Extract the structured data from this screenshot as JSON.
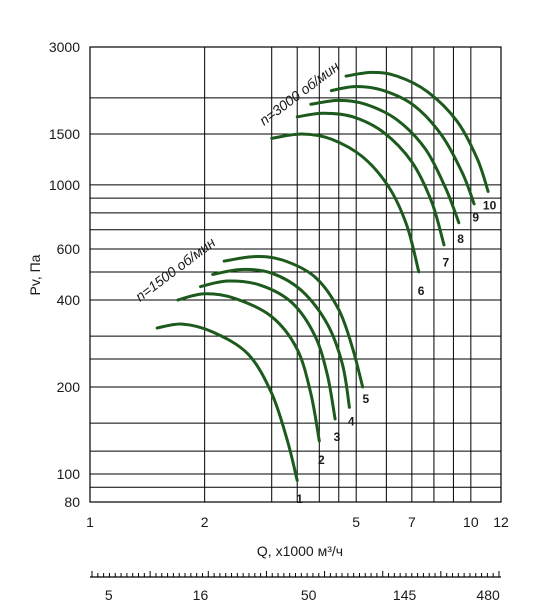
{
  "chart_data": {
    "type": "line",
    "title": "",
    "xlabel": "Q, x1000 м³/ч",
    "ylabel": "Pv, Па",
    "x_scale": "log",
    "y_scale": "log",
    "xlim": [
      1,
      12
    ],
    "ylim": [
      80,
      3000
    ],
    "grid": true,
    "line_color": "#1d5a1d",
    "x_ticks": [
      1,
      2,
      5,
      7,
      10,
      12
    ],
    "x_tick_labels": [
      "1",
      "2",
      "5",
      "7",
      "10",
      "12"
    ],
    "x_gridlines": [
      1,
      2,
      3,
      3.5,
      4,
      4.5,
      5,
      6,
      7,
      8,
      9,
      10,
      12
    ],
    "y_ticks": [
      80,
      100,
      200,
      400,
      600,
      1000,
      1500,
      3000
    ],
    "y_tick_labels": [
      "80",
      "100",
      "200",
      "400",
      "600",
      "1000",
      "1500",
      "3000"
    ],
    "y_gridlines": [
      80,
      90,
      100,
      120,
      150,
      200,
      250,
      300,
      400,
      500,
      600,
      700,
      800,
      900,
      1000,
      1500,
      2000,
      3000
    ],
    "secondary_axis": {
      "tick_labels": [
        "5",
        "16",
        "50",
        "145",
        "480"
      ],
      "tick_positions_q": [
        1.12,
        1.95,
        3.75,
        6.7,
        11.1
      ]
    },
    "speed_labels": [
      {
        "text": "n=1500 об/мин",
        "curves": [
          1,
          2,
          3,
          4,
          5
        ]
      },
      {
        "text": "n=3000 об/мин",
        "curves": [
          6,
          7,
          8,
          9,
          10
        ]
      }
    ],
    "series": [
      {
        "name": "1",
        "points": [
          [
            1.5,
            320
          ],
          [
            1.75,
            330
          ],
          [
            2.1,
            310
          ],
          [
            2.6,
            260
          ],
          [
            3.0,
            190
          ],
          [
            3.3,
            130
          ],
          [
            3.5,
            95
          ]
        ]
      },
      {
        "name": "2",
        "points": [
          [
            1.7,
            400
          ],
          [
            2.0,
            420
          ],
          [
            2.4,
            405
          ],
          [
            3.0,
            350
          ],
          [
            3.5,
            270
          ],
          [
            3.8,
            190
          ],
          [
            4.0,
            130
          ]
        ]
      },
      {
        "name": "3",
        "points": [
          [
            1.95,
            445
          ],
          [
            2.3,
            465
          ],
          [
            2.8,
            450
          ],
          [
            3.4,
            390
          ],
          [
            3.9,
            300
          ],
          [
            4.2,
            220
          ],
          [
            4.4,
            155
          ]
        ]
      },
      {
        "name": "4",
        "points": [
          [
            2.1,
            490
          ],
          [
            2.5,
            510
          ],
          [
            3.0,
            495
          ],
          [
            3.6,
            430
          ],
          [
            4.2,
            330
          ],
          [
            4.6,
            240
          ],
          [
            4.8,
            170
          ]
        ]
      },
      {
        "name": "5",
        "points": [
          [
            2.25,
            545
          ],
          [
            2.7,
            565
          ],
          [
            3.2,
            550
          ],
          [
            3.9,
            480
          ],
          [
            4.5,
            370
          ],
          [
            4.9,
            270
          ],
          [
            5.2,
            200
          ]
        ]
      },
      {
        "name": "6",
        "points": [
          [
            3.0,
            1450
          ],
          [
            3.6,
            1500
          ],
          [
            4.3,
            1440
          ],
          [
            5.2,
            1250
          ],
          [
            6.1,
            980
          ],
          [
            6.8,
            720
          ],
          [
            7.3,
            500
          ]
        ]
      },
      {
        "name": "7",
        "points": [
          [
            3.5,
            1720
          ],
          [
            4.1,
            1770
          ],
          [
            4.9,
            1720
          ],
          [
            5.9,
            1520
          ],
          [
            7.0,
            1200
          ],
          [
            7.9,
            870
          ],
          [
            8.5,
            620
          ]
        ]
      },
      {
        "name": "8",
        "points": [
          [
            3.8,
            1900
          ],
          [
            4.5,
            1960
          ],
          [
            5.3,
            1900
          ],
          [
            6.4,
            1680
          ],
          [
            7.6,
            1330
          ],
          [
            8.6,
            970
          ],
          [
            9.3,
            740
          ]
        ]
      },
      {
        "name": "9",
        "points": [
          [
            4.3,
            2120
          ],
          [
            5.0,
            2190
          ],
          [
            5.9,
            2120
          ],
          [
            7.1,
            1880
          ],
          [
            8.4,
            1480
          ],
          [
            9.5,
            1100
          ],
          [
            10.2,
            860
          ]
        ]
      },
      {
        "name": "10",
        "points": [
          [
            4.7,
            2380
          ],
          [
            5.5,
            2450
          ],
          [
            6.4,
            2380
          ],
          [
            7.7,
            2100
          ],
          [
            9.2,
            1660
          ],
          [
            10.4,
            1230
          ],
          [
            11.1,
            950
          ]
        ]
      }
    ],
    "curve_label_points": [
      [
        3.55,
        82
      ],
      [
        4.05,
        112
      ],
      [
        4.45,
        134
      ],
      [
        4.85,
        152
      ],
      [
        5.3,
        182
      ],
      [
        7.4,
        430
      ],
      [
        8.6,
        540
      ],
      [
        9.4,
        650
      ],
      [
        10.3,
        770
      ],
      [
        11.2,
        850
      ]
    ]
  }
}
